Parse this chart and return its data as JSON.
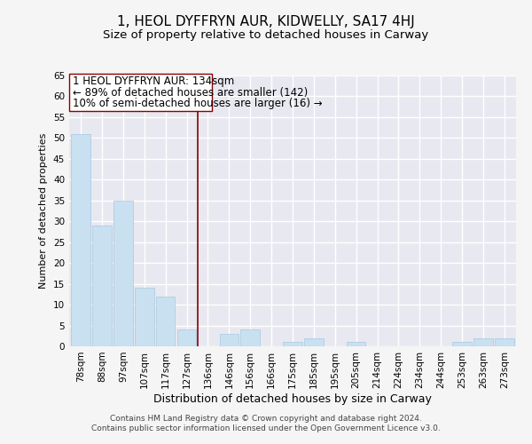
{
  "title": "1, HEOL DYFFRYN AUR, KIDWELLY, SA17 4HJ",
  "subtitle": "Size of property relative to detached houses in Carway",
  "xlabel": "Distribution of detached houses by size in Carway",
  "ylabel": "Number of detached properties",
  "bar_color": "#c9e0f0",
  "bar_edgecolor": "#a8c8e0",
  "categories": [
    "78sqm",
    "88sqm",
    "97sqm",
    "107sqm",
    "117sqm",
    "127sqm",
    "136sqm",
    "146sqm",
    "156sqm",
    "166sqm",
    "175sqm",
    "185sqm",
    "195sqm",
    "205sqm",
    "214sqm",
    "224sqm",
    "234sqm",
    "244sqm",
    "253sqm",
    "263sqm",
    "273sqm"
  ],
  "values": [
    51,
    29,
    35,
    14,
    12,
    4,
    0,
    3,
    4,
    0,
    1,
    2,
    0,
    1,
    0,
    0,
    0,
    0,
    1,
    2,
    2
  ],
  "ylim": [
    0,
    65
  ],
  "yticks": [
    0,
    5,
    10,
    15,
    20,
    25,
    30,
    35,
    40,
    45,
    50,
    55,
    60,
    65
  ],
  "vline_x_index": 6,
  "vline_color": "#8b0000",
  "annotation_line1": "1 HEOL DYFFRYN AUR: 134sqm",
  "annotation_line2": "← 89% of detached houses are smaller (142)",
  "annotation_line3": "10% of semi-detached houses are larger (16) →",
  "footer_line1": "Contains HM Land Registry data © Crown copyright and database right 2024.",
  "footer_line2": "Contains public sector information licensed under the Open Government Licence v3.0.",
  "background_color": "#f5f5f5",
  "plot_bg_color": "#e8e8f0",
  "grid_color": "#ffffff",
  "title_fontsize": 11,
  "subtitle_fontsize": 9.5,
  "xlabel_fontsize": 9,
  "ylabel_fontsize": 8,
  "tick_fontsize": 7.5,
  "annotation_fontsize": 8.5,
  "footer_fontsize": 6.5
}
